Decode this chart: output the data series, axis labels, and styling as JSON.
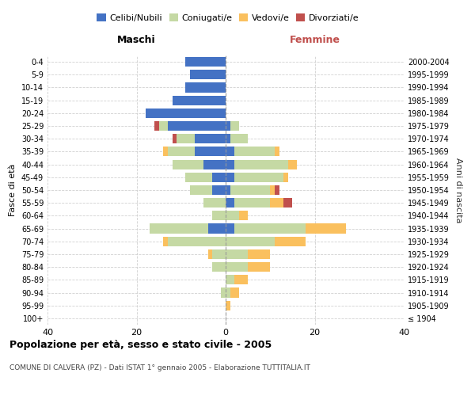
{
  "age_groups": [
    "100+",
    "95-99",
    "90-94",
    "85-89",
    "80-84",
    "75-79",
    "70-74",
    "65-69",
    "60-64",
    "55-59",
    "50-54",
    "45-49",
    "40-44",
    "35-39",
    "30-34",
    "25-29",
    "20-24",
    "15-19",
    "10-14",
    "5-9",
    "0-4"
  ],
  "birth_years": [
    "≤ 1904",
    "1905-1909",
    "1910-1914",
    "1915-1919",
    "1920-1924",
    "1925-1929",
    "1930-1934",
    "1935-1939",
    "1940-1944",
    "1945-1949",
    "1950-1954",
    "1955-1959",
    "1960-1964",
    "1965-1969",
    "1970-1974",
    "1975-1979",
    "1980-1984",
    "1985-1989",
    "1990-1994",
    "1995-1999",
    "2000-2004"
  ],
  "male": {
    "celibe": [
      0,
      0,
      0,
      0,
      0,
      0,
      0,
      4,
      0,
      0,
      3,
      3,
      5,
      7,
      7,
      13,
      18,
      12,
      9,
      8,
      9
    ],
    "coniugato": [
      0,
      0,
      1,
      0,
      3,
      3,
      13,
      13,
      3,
      5,
      5,
      6,
      7,
      6,
      4,
      2,
      0,
      0,
      0,
      0,
      0
    ],
    "vedovo": [
      0,
      0,
      0,
      0,
      0,
      1,
      1,
      0,
      0,
      0,
      0,
      0,
      0,
      1,
      0,
      0,
      0,
      0,
      0,
      0,
      0
    ],
    "divorziato": [
      0,
      0,
      0,
      0,
      0,
      0,
      0,
      0,
      0,
      0,
      0,
      0,
      0,
      0,
      1,
      1,
      0,
      0,
      0,
      0,
      0
    ]
  },
  "female": {
    "nubile": [
      0,
      0,
      0,
      0,
      0,
      0,
      0,
      2,
      0,
      2,
      1,
      2,
      2,
      2,
      1,
      1,
      0,
      0,
      0,
      0,
      0
    ],
    "coniugata": [
      0,
      0,
      1,
      2,
      5,
      5,
      11,
      16,
      3,
      8,
      9,
      11,
      12,
      9,
      4,
      2,
      0,
      0,
      0,
      0,
      0
    ],
    "vedova": [
      0,
      1,
      2,
      3,
      5,
      5,
      7,
      9,
      2,
      3,
      1,
      1,
      2,
      1,
      0,
      0,
      0,
      0,
      0,
      0,
      0
    ],
    "divorziata": [
      0,
      0,
      0,
      0,
      0,
      0,
      0,
      0,
      0,
      2,
      1,
      0,
      0,
      0,
      0,
      0,
      0,
      0,
      0,
      0,
      0
    ]
  },
  "colors": {
    "celibe": "#4472C4",
    "coniugato": "#C5D9A4",
    "vedovo": "#FAC05E",
    "divorziato": "#C0504D"
  },
  "title": "Popolazione per età, sesso e stato civile - 2005",
  "subtitle": "COMUNE DI CALVERA (PZ) - Dati ISTAT 1° gennaio 2005 - Elaborazione TUTTITALIA.IT",
  "xlabel_left": "Maschi",
  "xlabel_right": "Femmine",
  "ylabel_left": "Fasce di età",
  "ylabel_right": "Anni di nascita",
  "xlim": 40,
  "legend_labels": [
    "Celibi/Nubili",
    "Coniugati/e",
    "Vedovi/e",
    "Divorziati/e"
  ],
  "background_color": "#ffffff",
  "grid_color": "#cccccc",
  "femmine_color": "#C0504D"
}
